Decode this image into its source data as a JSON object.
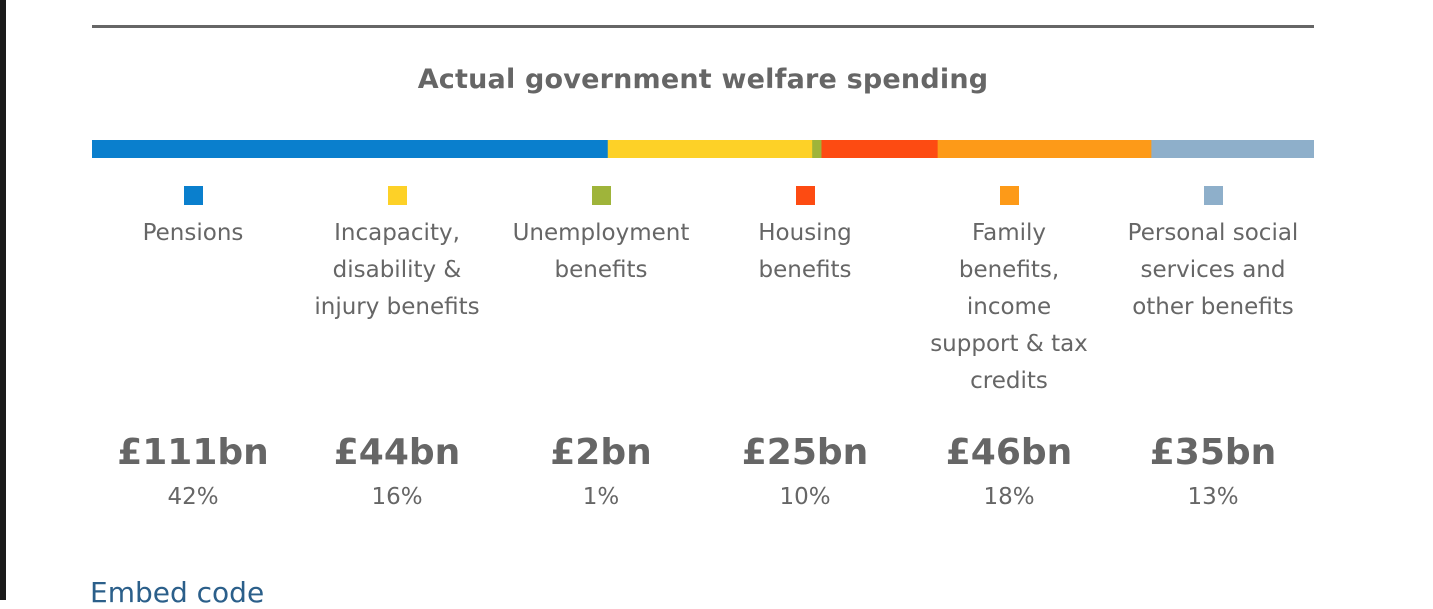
{
  "chart_data": {
    "type": "bar",
    "stacked": true,
    "orientation": "horizontal",
    "title": "Actual government welfare spending",
    "unit": "£bn",
    "categories": [
      "Pensions",
      "Incapacity,\ndisability &\ninjury benefits",
      "Unemployment\nbenefits",
      "Housing\nbenefits",
      "Family\nbenefits,\nincome\nsupport & tax\ncredits",
      "Personal social\nservices and\nother benefits"
    ],
    "values": [
      111,
      44,
      2,
      25,
      46,
      35
    ],
    "value_labels": [
      "£111bn",
      "£44bn",
      "£2bn",
      "£25bn",
      "£46bn",
      "£35bn"
    ],
    "percentages": [
      42,
      16,
      1,
      10,
      18,
      13
    ],
    "percent_labels": [
      "42%",
      "16%",
      "1%",
      "10%",
      "18%",
      "13%"
    ],
    "colors": [
      "#0a7fcd",
      "#fdd127",
      "#9fb43a",
      "#fd4b12",
      "#fd9a18",
      "#8eafca"
    ],
    "legend_position": "below",
    "grid": false
  },
  "footer": {
    "embed_label": "Embed code"
  }
}
